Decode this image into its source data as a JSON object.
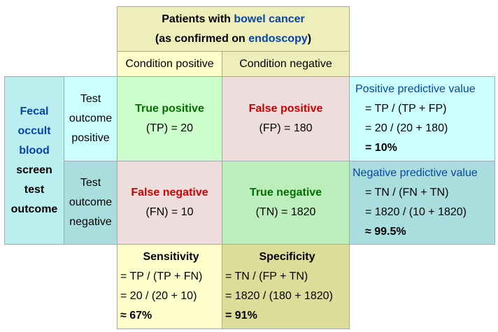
{
  "header": {
    "line1_prefix": "Patients with ",
    "line1_link": "bowel cancer",
    "line2_prefix": "(as confirmed on ",
    "line2_link": "endoscopy",
    "line2_suffix": ")"
  },
  "columns": {
    "positive": "Condition positive",
    "negative": "Condition negative"
  },
  "row_header": {
    "link_lines": [
      "Fecal",
      "occult",
      "blood"
    ],
    "bold_lines": [
      "screen",
      "test",
      "outcome"
    ]
  },
  "rows": {
    "positive": [
      "Test",
      "outcome",
      "positive"
    ],
    "negative": [
      "Test",
      "outcome",
      "negative"
    ]
  },
  "cells": {
    "tp": {
      "title": "True positive",
      "value": "(TP) = 20"
    },
    "fp": {
      "title": "False positive",
      "value": "(FP) = 180"
    },
    "fn": {
      "title": "False negative",
      "value": "(FN) = 10"
    },
    "tn": {
      "title": "True negative",
      "value": "(TN) = 1820"
    }
  },
  "ppv": {
    "title": "Positive predictive value",
    "formula": "= TP / (TP + FP)",
    "calc": "= 20 / (20 + 180)",
    "result": "= 10%"
  },
  "npv": {
    "title": "Negative predictive value",
    "formula": "= TN / (FN + TN)",
    "calc": "= 1820 / (10 + 1820)",
    "result": "≈ 99.5%"
  },
  "sensitivity": {
    "title": "Sensitivity",
    "formula": "= TP / (TP + FN)",
    "calc": "= 20 / (20 + 10)",
    "result": "≈ 67%"
  },
  "specificity": {
    "title": "Specificity",
    "formula": "= TN / (FP + TN)",
    "calc": "= 1820 / (180 + 1820)",
    "result": "= 91%"
  }
}
